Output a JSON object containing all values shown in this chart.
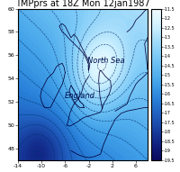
{
  "title": "TMPprs at 18Z Mon 12jan1987",
  "colorbar_min": -19.5,
  "colorbar_max": -11.5,
  "colorbar_ticks": [
    -11.5,
    -12,
    -12.5,
    -13,
    -13.5,
    -14,
    -14.5,
    -15,
    -15.5,
    -16,
    -16.5,
    -17,
    -17.5,
    -18,
    -18.5,
    -19,
    -19.5
  ],
  "lon_min": -14,
  "lon_max": 8,
  "lat_min": 47,
  "lat_max": 60,
  "xlabel_ticks": [
    -14,
    -10,
    -6,
    -2,
    2,
    6
  ],
  "ylabel_ticks": [
    48,
    50,
    52,
    54,
    56,
    58,
    60
  ],
  "north_sea_label": "North Sea",
  "england_label": "England",
  "north_sea_lon": 1.0,
  "north_sea_lat": 55.5,
  "england_lon": -3.5,
  "england_lat": 52.5,
  "title_fontsize": 7.0,
  "label_fontsize": 6.0,
  "tick_fontsize": 4.5
}
